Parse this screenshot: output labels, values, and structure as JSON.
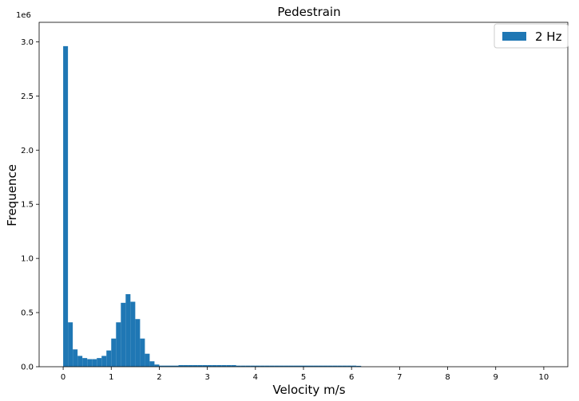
{
  "chart_data": {
    "type": "bar",
    "title": "Pedestrain",
    "xlabel": "Velocity m/s",
    "ylabel": "Frequence",
    "y_scale_label": "1e6",
    "xlim": [
      -0.5,
      10.5
    ],
    "ylim": [
      0,
      3.18
    ],
    "y_units_multiplier": 1000000,
    "grid": false,
    "legend": {
      "placement": "top-right",
      "entries": [
        "2 Hz"
      ]
    },
    "bar_color": "#1f77b4",
    "bin_width": 0.1,
    "x_ticks": [
      0,
      1,
      2,
      3,
      4,
      5,
      6,
      7,
      8,
      9,
      10
    ],
    "x_tick_labels": [
      "0",
      "1",
      "2",
      "3",
      "4",
      "5",
      "6",
      "7",
      "8",
      "9",
      "10"
    ],
    "y_ticks": [
      0.0,
      0.5,
      1.0,
      1.5,
      2.0,
      2.5,
      3.0
    ],
    "y_tick_labels": [
      "0.0",
      "0.5",
      "1.0",
      "1.5",
      "2.0",
      "2.5",
      "3.0"
    ],
    "series": [
      {
        "name": "2 Hz",
        "bin_starts": [
          0.0,
          0.1,
          0.2,
          0.3,
          0.4,
          0.5,
          0.6,
          0.7,
          0.8,
          0.9,
          1.0,
          1.1,
          1.2,
          1.3,
          1.4,
          1.5,
          1.6,
          1.7,
          1.8,
          1.9,
          2.0,
          2.1,
          2.2,
          2.3,
          2.4,
          2.5,
          2.6,
          2.7,
          2.8,
          2.9,
          3.0,
          3.1,
          3.2,
          3.3,
          3.4,
          3.5,
          3.6,
          3.7,
          3.8,
          3.9,
          4.0,
          4.1,
          4.2,
          4.3,
          4.4,
          4.5,
          4.6,
          4.7,
          4.8,
          4.9,
          5.0,
          5.1,
          5.2,
          5.3,
          5.4,
          5.5,
          5.6,
          5.7,
          5.8,
          5.9,
          6.0,
          6.1
        ],
        "values": [
          2.96,
          0.41,
          0.16,
          0.1,
          0.08,
          0.07,
          0.07,
          0.08,
          0.1,
          0.15,
          0.26,
          0.41,
          0.59,
          0.67,
          0.6,
          0.44,
          0.26,
          0.12,
          0.05,
          0.02,
          0.01,
          0.01,
          0.01,
          0.01,
          0.015,
          0.015,
          0.015,
          0.015,
          0.015,
          0.015,
          0.015,
          0.015,
          0.015,
          0.015,
          0.015,
          0.015,
          0.01,
          0.01,
          0.01,
          0.01,
          0.01,
          0.01,
          0.01,
          0.01,
          0.01,
          0.01,
          0.01,
          0.01,
          0.01,
          0.01,
          0.01,
          0.01,
          0.01,
          0.01,
          0.01,
          0.01,
          0.01,
          0.01,
          0.01,
          0.01,
          0.01,
          0.008
        ]
      }
    ]
  }
}
